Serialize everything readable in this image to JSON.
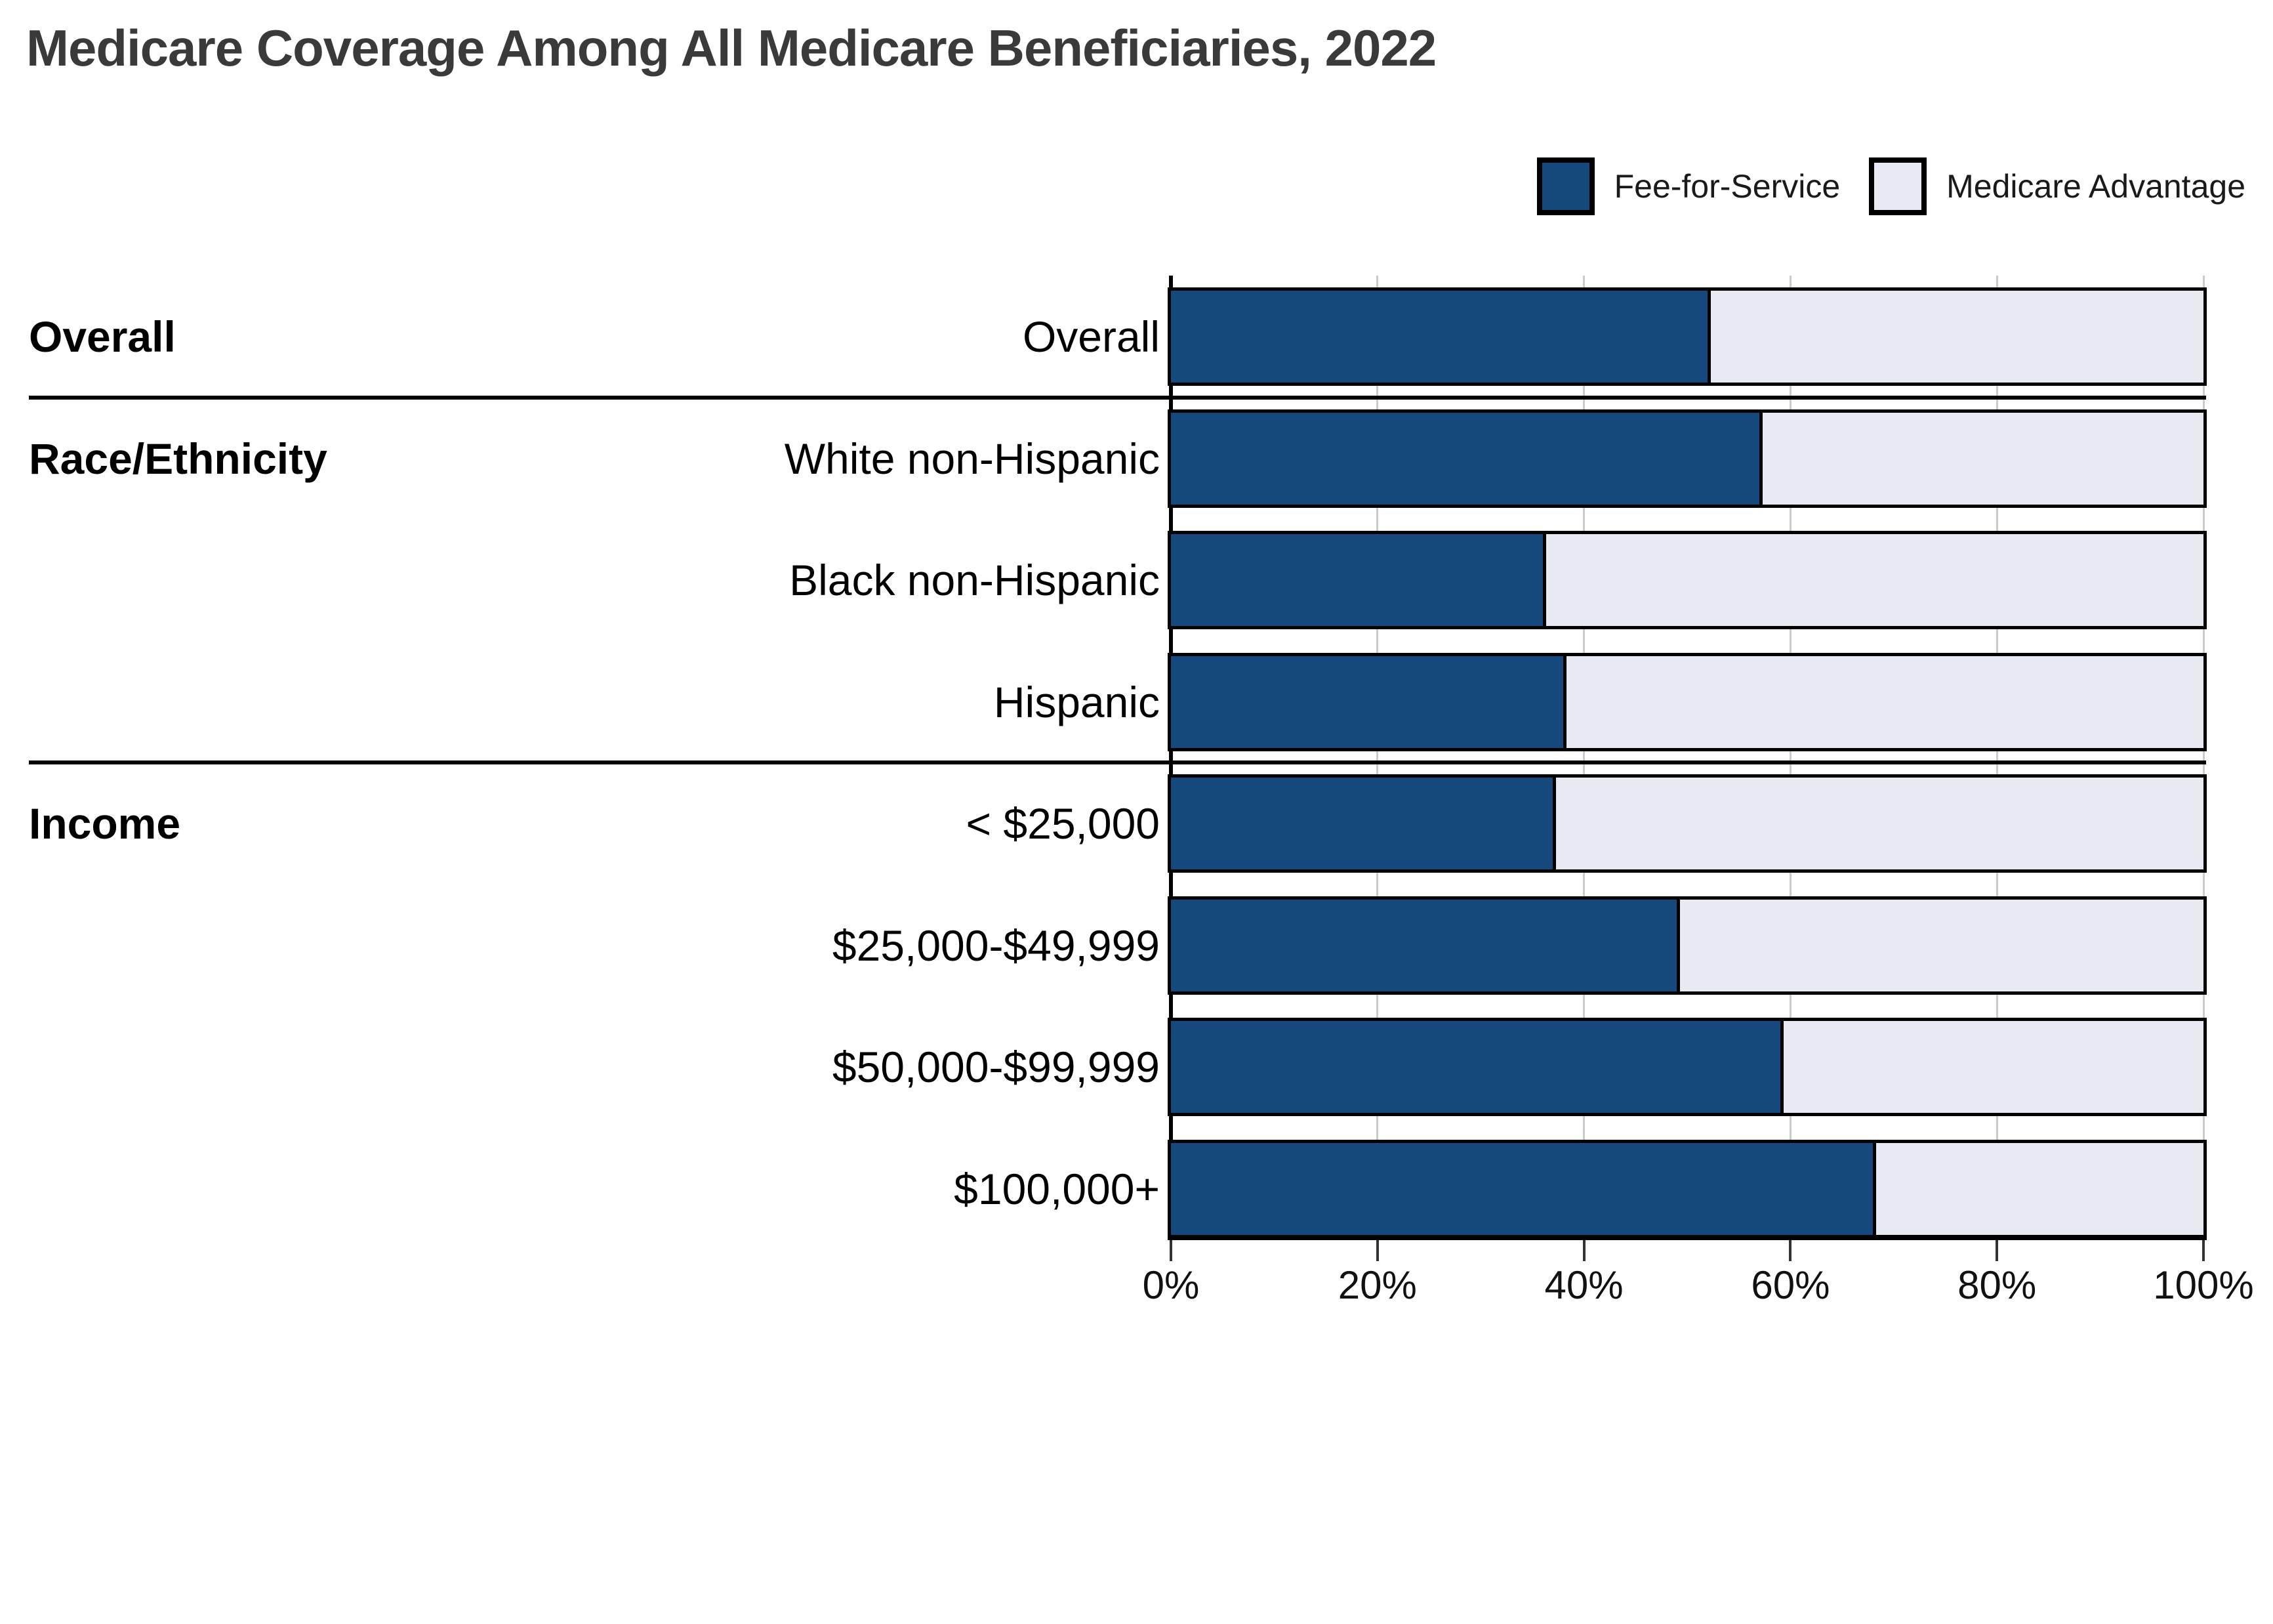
{
  "title": "Medicare Coverage Among All Medicare Beneficiaries, 2022",
  "legend": {
    "items": [
      {
        "label": "Fee-for-Service",
        "color": "#15497D"
      },
      {
        "label": "Medicare Advantage",
        "color": "#E7EAF2"
      }
    ]
  },
  "colors": {
    "fee_for_service": "#15497D",
    "medicare_advantage": "#E7EAF2",
    "bar_border": "#000000",
    "gridline": "#CBCBCB",
    "title_text": "#3A3A3A"
  },
  "chart_data": {
    "type": "bar",
    "orientation": "horizontal",
    "stacked": true,
    "title": "Medicare Coverage Among All Medicare Beneficiaries, 2022",
    "groups": [
      {
        "label": "Overall",
        "categories": [
          "Overall"
        ]
      },
      {
        "label": "Race/Ethnicity",
        "categories": [
          "White non-Hispanic",
          "Black non-Hispanic",
          "Hispanic"
        ]
      },
      {
        "label": "Income",
        "categories": [
          "< $25,000",
          "$25,000-$49,999",
          "$50,000-$99,999",
          "$100,000+"
        ]
      }
    ],
    "categories": [
      "Overall",
      "White non-Hispanic",
      "Black non-Hispanic",
      "Hispanic",
      "< $25,000",
      "$25,000-$49,999",
      "$50,000-$99,999",
      "$100,000+"
    ],
    "series": [
      {
        "name": "Fee-for-Service",
        "color": "#15497D",
        "values": [
          52,
          57,
          36,
          38,
          37,
          49,
          59,
          68
        ]
      },
      {
        "name": "Medicare Advantage",
        "color": "#E7EAF2",
        "values": [
          48,
          43,
          64,
          62,
          63,
          51,
          41,
          32
        ]
      }
    ],
    "xlabel": "",
    "ylabel": "",
    "xlim": [
      0,
      100
    ],
    "x_ticks": [
      "0%",
      "20%",
      "40%",
      "60%",
      "80%",
      "100%"
    ],
    "x_tick_values": [
      0,
      20,
      40,
      60,
      80,
      100
    ],
    "grid": true,
    "legend_position": "top-right"
  }
}
